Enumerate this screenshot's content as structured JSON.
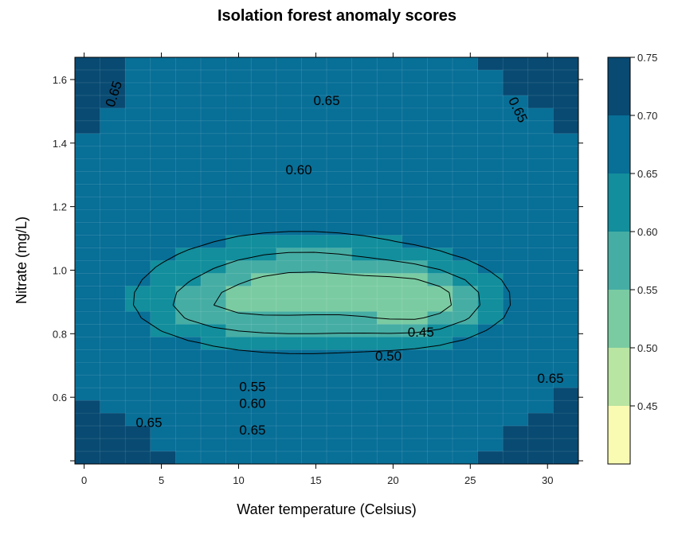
{
  "chart_data": {
    "type": "heatmap",
    "title": "Isolation forest anomaly scores",
    "xlabel": "Water temperature (Celsius)",
    "ylabel": "Nitrate (mg/L)",
    "xlim": [
      -0.6,
      32
    ],
    "ylim": [
      0.39,
      1.67
    ],
    "x_ticks": [
      "0",
      "5",
      "10",
      "15",
      "20",
      "25",
      "30"
    ],
    "y_ticks": [
      "0.6",
      "0.8",
      "1.0",
      "1.2",
      "1.4",
      "1.6"
    ],
    "x_step": 1.63,
    "y_step": 0.04,
    "levels": [
      0.4,
      0.45,
      0.5,
      0.55,
      0.6,
      0.65,
      0.7,
      0.75
    ],
    "colorbar_ticks": [
      "0.45",
      "0.50",
      "0.55",
      "0.60",
      "0.65",
      "0.70",
      "0.75"
    ],
    "colors": [
      "#fafbb3",
      "#b8e5a1",
      "#7acba2",
      "#46ada4",
      "#128e9c",
      "#086f97",
      "#084a72"
    ],
    "grid": true,
    "contour_labels": [
      {
        "text": "0.65",
        "x": 1.9,
        "y": 1.555,
        "rotate": -72
      },
      {
        "text": "0.65",
        "x": 15.7,
        "y": 1.535,
        "rotate": 0
      },
      {
        "text": "0.65",
        "x": 28.1,
        "y": 1.505,
        "rotate": 64
      },
      {
        "text": "0.60",
        "x": 13.9,
        "y": 1.317,
        "rotate": 0
      },
      {
        "text": "0.45",
        "x": 21.8,
        "y": 0.806,
        "rotate": 0
      },
      {
        "text": "0.50",
        "x": 19.7,
        "y": 0.731,
        "rotate": 0
      },
      {
        "text": "0.55",
        "x": 10.9,
        "y": 0.634,
        "rotate": 0
      },
      {
        "text": "0.60",
        "x": 10.9,
        "y": 0.582,
        "rotate": 0
      },
      {
        "text": "0.65",
        "x": 4.2,
        "y": 0.522,
        "rotate": 0
      },
      {
        "text": "0.65",
        "x": 10.9,
        "y": 0.498,
        "rotate": 0
      },
      {
        "text": "0.65",
        "x": 30.2,
        "y": 0.661,
        "rotate": 0
      }
    ]
  }
}
